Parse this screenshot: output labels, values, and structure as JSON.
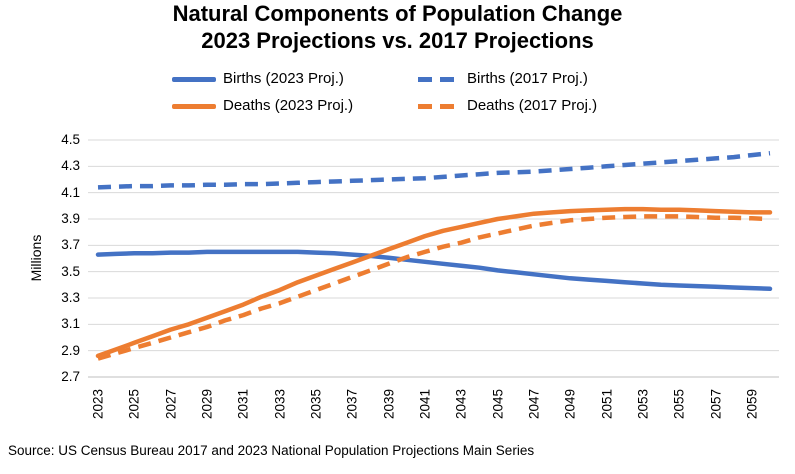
{
  "title": {
    "line1": "Natural Components of Population Change",
    "line2": "2023 Projections vs. 2017 Projections"
  },
  "colors": {
    "blue": "#4472C4",
    "orange": "#ED7D31",
    "gridline": "#D9D9D9",
    "axis_line": "#BFBFBF",
    "text": "#000000"
  },
  "legend": {
    "items": [
      {
        "label": "Births (2023 Proj.)",
        "color": "#4472C4",
        "style": "solid"
      },
      {
        "label": "Births (2017 Proj.)",
        "color": "#4472C4",
        "style": "dashed"
      },
      {
        "label": "Deaths (2023 Proj.)",
        "color": "#ED7D31",
        "style": "solid"
      },
      {
        "label": "Deaths (2017 Proj.)",
        "color": "#ED7D31",
        "style": "dashed"
      }
    ]
  },
  "chart_data": {
    "type": "line",
    "title": "Natural Components of Population Change 2023 Projections vs. 2017 Projections",
    "xlabel": "",
    "ylabel": "Millions",
    "ylim": [
      2.7,
      4.5
    ],
    "yticks": [
      2.7,
      2.9,
      3.1,
      3.3,
      3.5,
      3.7,
      3.9,
      4.1,
      4.3,
      4.5
    ],
    "xticklabels": [
      2023,
      2025,
      2027,
      2029,
      2031,
      2033,
      2035,
      2037,
      2039,
      2041,
      2043,
      2045,
      2047,
      2049,
      2051,
      2053,
      2055,
      2057,
      2059
    ],
    "grid": "horizontal",
    "legend_position": "top",
    "x": [
      2023,
      2024,
      2025,
      2026,
      2027,
      2028,
      2029,
      2030,
      2031,
      2032,
      2033,
      2034,
      2035,
      2036,
      2037,
      2038,
      2039,
      2040,
      2041,
      2042,
      2043,
      2044,
      2045,
      2046,
      2047,
      2048,
      2049,
      2050,
      2051,
      2052,
      2053,
      2054,
      2055,
      2056,
      2057,
      2058,
      2059,
      2060
    ],
    "series": [
      {
        "name": "Births (2023 Proj.)",
        "color": "#4472C4",
        "dash": "solid",
        "values": [
          3.63,
          3.635,
          3.64,
          3.64,
          3.645,
          3.645,
          3.65,
          3.65,
          3.65,
          3.65,
          3.65,
          3.65,
          3.645,
          3.64,
          3.63,
          3.62,
          3.605,
          3.59,
          3.575,
          3.56,
          3.545,
          3.53,
          3.51,
          3.495,
          3.48,
          3.465,
          3.45,
          3.44,
          3.43,
          3.42,
          3.41,
          3.4,
          3.395,
          3.39,
          3.385,
          3.38,
          3.375,
          3.37
        ]
      },
      {
        "name": "Births (2017 Proj.)",
        "color": "#4472C4",
        "dash": "dashed",
        "values": [
          4.14,
          4.145,
          4.15,
          4.15,
          4.155,
          4.155,
          4.16,
          4.16,
          4.165,
          4.165,
          4.17,
          4.175,
          4.18,
          4.185,
          4.19,
          4.195,
          4.2,
          4.205,
          4.21,
          4.22,
          4.23,
          4.24,
          4.25,
          4.255,
          4.26,
          4.27,
          4.28,
          4.29,
          4.3,
          4.31,
          4.32,
          4.33,
          4.34,
          4.35,
          4.36,
          4.37,
          4.385,
          4.4
        ]
      },
      {
        "name": "Deaths (2023 Proj.)",
        "color": "#ED7D31",
        "dash": "solid",
        "values": [
          2.86,
          2.91,
          2.96,
          3.01,
          3.06,
          3.1,
          3.15,
          3.2,
          3.25,
          3.31,
          3.36,
          3.42,
          3.47,
          3.52,
          3.57,
          3.62,
          3.67,
          3.72,
          3.77,
          3.81,
          3.84,
          3.87,
          3.9,
          3.92,
          3.94,
          3.95,
          3.96,
          3.965,
          3.97,
          3.975,
          3.975,
          3.97,
          3.97,
          3.965,
          3.96,
          3.955,
          3.95,
          3.95
        ]
      },
      {
        "name": "Deaths (2017 Proj.)",
        "color": "#ED7D31",
        "dash": "dashed",
        "values": [
          2.84,
          2.88,
          2.92,
          2.96,
          3.0,
          3.04,
          3.08,
          3.13,
          3.17,
          3.22,
          3.26,
          3.31,
          3.36,
          3.41,
          3.46,
          3.51,
          3.56,
          3.61,
          3.65,
          3.69,
          3.72,
          3.76,
          3.79,
          3.82,
          3.85,
          3.87,
          3.89,
          3.9,
          3.91,
          3.915,
          3.92,
          3.92,
          3.92,
          3.915,
          3.91,
          3.91,
          3.905,
          3.9
        ]
      }
    ]
  },
  "source": "Source: US Census Bureau 2017 and 2023 National Population Projections Main Series"
}
